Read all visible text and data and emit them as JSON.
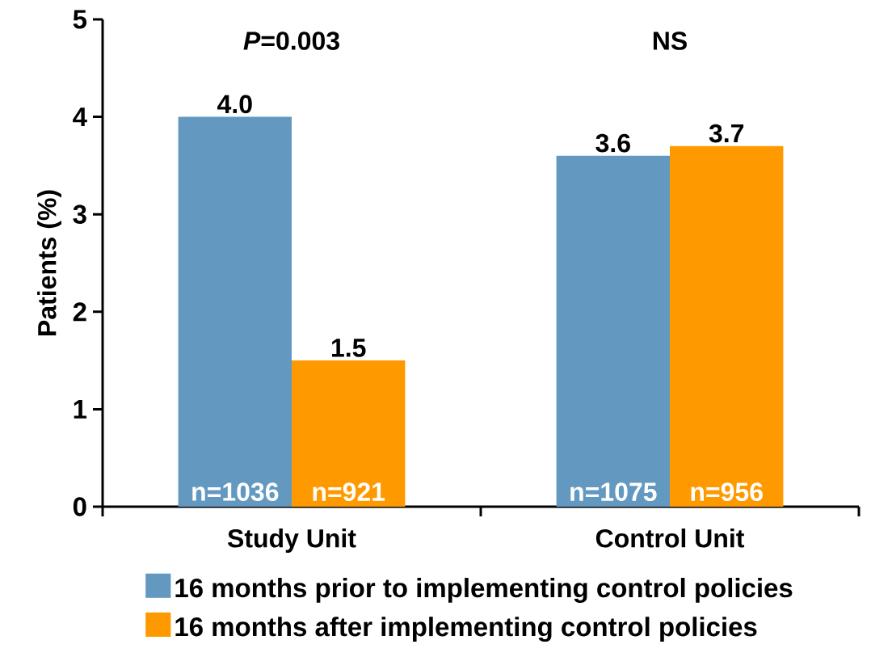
{
  "chart_data": {
    "type": "bar",
    "ylabel": "Patients (%)",
    "categories": [
      "Study Unit",
      "Control Unit"
    ],
    "series": [
      {
        "name": "16 months prior to implementing control policies",
        "color": "#6399c1",
        "values": [
          4.0,
          3.6
        ],
        "value_labels": [
          "4.0",
          "3.6"
        ]
      },
      {
        "name": "16 months after implementing control policies",
        "color": "#ff9900",
        "values": [
          1.5,
          3.7
        ],
        "value_labels": [
          "1.5",
          "3.7"
        ]
      }
    ],
    "ylim": [
      0,
      5
    ],
    "yticks": [
      0,
      1,
      2,
      3,
      4,
      5
    ],
    "legend": "bottom",
    "annotations": [
      "*P*=0.003",
      "NS",
      "n=1036",
      "n=921",
      "n=1075",
      "n=956"
    ]
  }
}
